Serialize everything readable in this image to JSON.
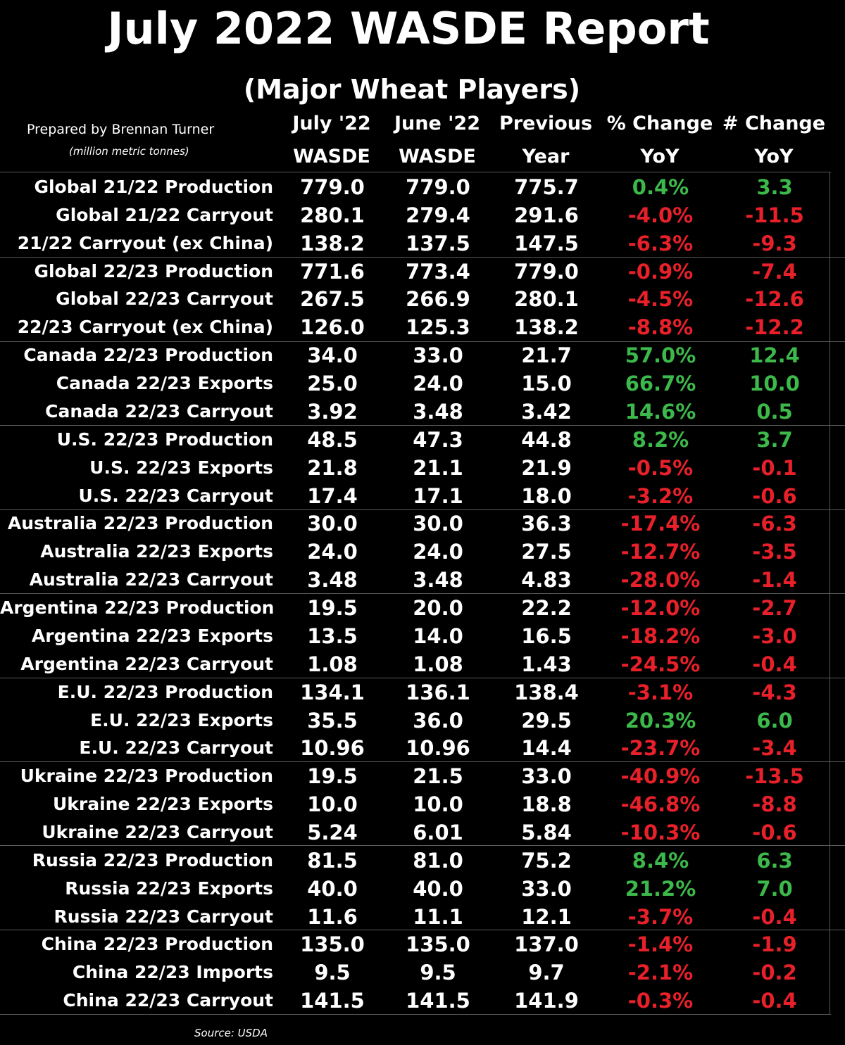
{
  "header": {
    "title": "July 2022 WASDE Report",
    "subtitle": "(Major Wheat Players)",
    "prepared_by": "Prepared by Brennan Turner",
    "units": "(million metric tonnes)"
  },
  "columns": [
    {
      "line1": "July '22",
      "line2": "WASDE"
    },
    {
      "line1": "June '22",
      "line2": "WASDE"
    },
    {
      "line1": "Previous",
      "line2": "Year"
    },
    {
      "line1": "% Change",
      "line2": "YoY"
    },
    {
      "line1": "# Change",
      "line2": "YoY"
    }
  ],
  "colors": {
    "positive": "#3cb94a",
    "negative": "#e8202a",
    "text": "#ffffff",
    "background": "#000000"
  },
  "rows": [
    {
      "label": "Global 21/22 Production",
      "july": "779.0",
      "june": "779.0",
      "prev": "775.7",
      "pct": "0.4%",
      "chg": "3.3"
    },
    {
      "label": "Global 21/22 Carryout",
      "july": "280.1",
      "june": "279.4",
      "prev": "291.6",
      "pct": "-4.0%",
      "chg": "-11.5"
    },
    {
      "label": "21/22 Carryout (ex China)",
      "july": "138.2",
      "june": "137.5",
      "prev": "147.5",
      "pct": "-6.3%",
      "chg": "-9.3"
    },
    {
      "label": "Global 22/23 Production",
      "july": "771.6",
      "june": "773.4",
      "prev": "779.0",
      "pct": "-0.9%",
      "chg": "-7.4"
    },
    {
      "label": "Global 22/23 Carryout",
      "july": "267.5",
      "june": "266.9",
      "prev": "280.1",
      "pct": "-4.5%",
      "chg": "-12.6"
    },
    {
      "label": "22/23 Carryout (ex China)",
      "july": "126.0",
      "june": "125.3",
      "prev": "138.2",
      "pct": "-8.8%",
      "chg": "-12.2"
    },
    {
      "label": "Canada 22/23 Production",
      "july": "34.0",
      "june": "33.0",
      "prev": "21.7",
      "pct": "57.0%",
      "chg": "12.4"
    },
    {
      "label": "Canada 22/23 Exports",
      "july": "25.0",
      "june": "24.0",
      "prev": "15.0",
      "pct": "66.7%",
      "chg": "10.0"
    },
    {
      "label": "Canada 22/23 Carryout",
      "july": "3.92",
      "june": "3.48",
      "prev": "3.42",
      "pct": "14.6%",
      "chg": "0.5"
    },
    {
      "label": "U.S. 22/23 Production",
      "july": "48.5",
      "june": "47.3",
      "prev": "44.8",
      "pct": "8.2%",
      "chg": "3.7"
    },
    {
      "label": "U.S. 22/23 Exports",
      "july": "21.8",
      "june": "21.1",
      "prev": "21.9",
      "pct": "-0.5%",
      "chg": "-0.1"
    },
    {
      "label": "U.S. 22/23 Carryout",
      "july": "17.4",
      "june": "17.1",
      "prev": "18.0",
      "pct": "-3.2%",
      "chg": "-0.6"
    },
    {
      "label": "Australia 22/23 Production",
      "july": "30.0",
      "june": "30.0",
      "prev": "36.3",
      "pct": "-17.4%",
      "chg": "-6.3"
    },
    {
      "label": "Australia 22/23 Exports",
      "july": "24.0",
      "june": "24.0",
      "prev": "27.5",
      "pct": "-12.7%",
      "chg": "-3.5"
    },
    {
      "label": "Australia 22/23 Carryout",
      "july": "3.48",
      "june": "3.48",
      "prev": "4.83",
      "pct": "-28.0%",
      "chg": "-1.4"
    },
    {
      "label": "Argentina 22/23 Production",
      "july": "19.5",
      "june": "20.0",
      "prev": "22.2",
      "pct": "-12.0%",
      "chg": "-2.7"
    },
    {
      "label": "Argentina 22/23 Exports",
      "july": "13.5",
      "june": "14.0",
      "prev": "16.5",
      "pct": "-18.2%",
      "chg": "-3.0"
    },
    {
      "label": "Argentina 22/23 Carryout",
      "july": "1.08",
      "june": "1.08",
      "prev": "1.43",
      "pct": "-24.5%",
      "chg": "-0.4"
    },
    {
      "label": "E.U. 22/23 Production",
      "july": "134.1",
      "june": "136.1",
      "prev": "138.4",
      "pct": "-3.1%",
      "chg": "-4.3"
    },
    {
      "label": "E.U. 22/23 Exports",
      "july": "35.5",
      "june": "36.0",
      "prev": "29.5",
      "pct": "20.3%",
      "chg": "6.0"
    },
    {
      "label": "E.U. 22/23 Carryout",
      "july": "10.96",
      "june": "10.96",
      "prev": "14.4",
      "pct": "-23.7%",
      "chg": "-3.4"
    },
    {
      "label": "Ukraine 22/23 Production",
      "july": "19.5",
      "june": "21.5",
      "prev": "33.0",
      "pct": "-40.9%",
      "chg": "-13.5"
    },
    {
      "label": "Ukraine 22/23 Exports",
      "july": "10.0",
      "june": "10.0",
      "prev": "18.8",
      "pct": "-46.8%",
      "chg": "-8.8"
    },
    {
      "label": "Ukraine 22/23 Carryout",
      "july": "5.24",
      "june": "6.01",
      "prev": "5.84",
      "pct": "-10.3%",
      "chg": "-0.6"
    },
    {
      "label": "Russia 22/23 Production",
      "july": "81.5",
      "june": "81.0",
      "prev": "75.2",
      "pct": "8.4%",
      "chg": "6.3"
    },
    {
      "label": "Russia 22/23 Exports",
      "july": "40.0",
      "june": "40.0",
      "prev": "33.0",
      "pct": "21.2%",
      "chg": "7.0"
    },
    {
      "label": "Russia 22/23 Carryout",
      "july": "11.6",
      "june": "11.1",
      "prev": "12.1",
      "pct": "-3.7%",
      "chg": "-0.4"
    },
    {
      "label": "China 22/23 Production",
      "july": "135.0",
      "june": "135.0",
      "prev": "137.0",
      "pct": "-1.4%",
      "chg": "-1.9"
    },
    {
      "label": "China 22/23 Imports",
      "july": "9.5",
      "june": "9.5",
      "prev": "9.7",
      "pct": "-2.1%",
      "chg": "-0.2"
    },
    {
      "label": "China 22/23 Carryout",
      "july": "141.5",
      "june": "141.5",
      "prev": "141.9",
      "pct": "-0.3%",
      "chg": "-0.4"
    }
  ],
  "footer": {
    "source": "Source: USDA"
  }
}
